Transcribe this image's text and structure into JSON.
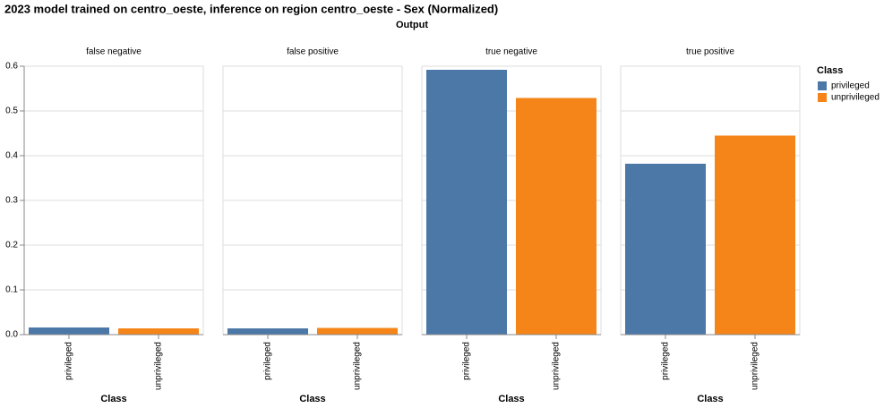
{
  "title": "2023 model trained on centro_oeste, inference on region centro_oeste - Sex (Normalized)",
  "column_title": "Output",
  "legend": {
    "title": "Class",
    "corner": "top-right"
  },
  "chart_data": [
    {
      "type": "bar",
      "title": "false negative",
      "xlabel": "Class",
      "categories": [
        "privileged",
        "unprivileged"
      ],
      "values": [
        0.016,
        0.014
      ],
      "colors": [
        "#4c78a8",
        "#f58518"
      ],
      "ylim": [
        0,
        0.6
      ],
      "yticks": [
        {
          "value": 0,
          "label": "0.0"
        },
        0.1,
        0.2,
        0.3,
        0.4,
        0.5,
        0.6
      ],
      "grid": true
    },
    {
      "type": "bar",
      "title": "false positive",
      "xlabel": "Class",
      "categories": [
        "privileged",
        "unprivileged"
      ],
      "values": [
        0.014,
        0.015
      ],
      "colors": [
        "#4c78a8",
        "#f58518"
      ]
    },
    {
      "type": "bar",
      "title": "true negative",
      "xlabel": "Class",
      "categories": [
        "privileged",
        "unprivileged"
      ],
      "values": [
        0.592,
        0.529
      ],
      "colors": [
        "#4c78a8",
        "#f58518"
      ]
    },
    {
      "type": "bar",
      "title": "true positive",
      "xlabel": "Class",
      "categories": [
        "privileged",
        "unprivileged"
      ],
      "values": [
        0.382,
        0.445
      ],
      "colors": [
        "#4c78a8",
        "#f58518"
      ]
    }
  ]
}
